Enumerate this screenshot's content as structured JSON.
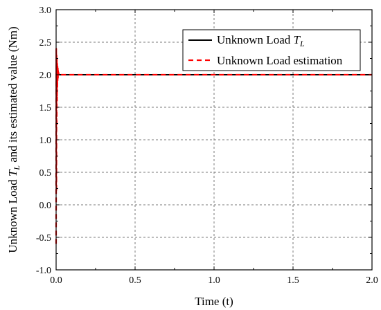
{
  "chart_data": {
    "type": "line",
    "title": "",
    "xlabel": "Time (t)",
    "ylabel": "Unknown Load T_L and its estimated value (Nm)",
    "ylabel_parts": {
      "before": "Unknown Load ",
      "symbol": "T",
      "subscript": "L",
      "after": " and its estimated value  (Nm)"
    },
    "xlim": [
      0.0,
      2.0
    ],
    "ylim": [
      -1.0,
      3.0
    ],
    "xticks": [
      "0.0",
      "0.5",
      "1.0",
      "1.5",
      "2.0"
    ],
    "yticks": [
      "-1.0",
      "-0.5",
      "0.0",
      "0.5",
      "1.0",
      "1.5",
      "2.0",
      "2.5",
      "3.0"
    ],
    "grid": true,
    "legend_position": "top-right",
    "series": [
      {
        "name": "Unknown Load T_L",
        "name_parts": {
          "before": "Unknown Load  ",
          "symbol": "T",
          "subscript": "L"
        },
        "color": "#000000",
        "style": "solid",
        "x": [
          0.0,
          2.0
        ],
        "y": [
          2.0,
          2.0
        ]
      },
      {
        "name": "Unknown Load estimation",
        "color": "#ff0000",
        "style": "dashed",
        "x": [
          0.0,
          0.001,
          0.002,
          0.003,
          0.004,
          0.005,
          0.006,
          0.007,
          0.008,
          0.009,
          0.01,
          0.011,
          0.012,
          0.013,
          0.014,
          0.016,
          0.018,
          0.02,
          0.025,
          0.03,
          2.0
        ],
        "y": [
          -0.6,
          2.4,
          0.2,
          2.3,
          1.2,
          2.25,
          1.6,
          2.2,
          1.8,
          2.15,
          1.9,
          2.1,
          1.95,
          2.06,
          1.98,
          2.03,
          1.99,
          2.01,
          2.0,
          2.0,
          2.0
        ]
      }
    ]
  }
}
